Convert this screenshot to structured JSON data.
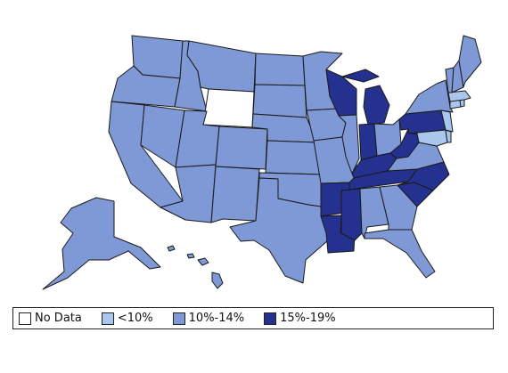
{
  "colors": {
    "no_data": "#ffffff",
    "low": "#a9c6ec",
    "mid": "#7f98d6",
    "high": "#24318f",
    "outline": "#1a1a1a"
  },
  "legend": [
    {
      "label": "No Data",
      "color_key": "no_data"
    },
    {
      "label": "<10%",
      "color_key": "low"
    },
    {
      "label": "10%-14%",
      "color_key": "mid"
    },
    {
      "label": "15%-19%",
      "color_key": "high"
    }
  ],
  "states": {
    "WA": "mid",
    "OR": "mid",
    "CA": "mid",
    "NV": "mid",
    "ID": "mid",
    "MT": "mid",
    "WY": "no_data",
    "UT": "mid",
    "AZ": "mid",
    "CO": "mid",
    "NM": "mid",
    "ND": "mid",
    "SD": "mid",
    "NE": "mid",
    "KS": "mid",
    "OK": "mid",
    "TX": "mid",
    "MN": "mid",
    "IA": "mid",
    "MO": "mid",
    "AR": "high",
    "LA": "high",
    "WI": "high",
    "IL": "mid",
    "MI": "high",
    "IN": "high",
    "OH": "mid",
    "KY": "high",
    "TN": "high",
    "MS": "high",
    "AL": "mid",
    "GA": "mid",
    "FL": "mid",
    "SC": "high",
    "NC": "high",
    "VA": "mid",
    "WV": "high",
    "PA": "high",
    "NY": "mid",
    "VT": "mid",
    "NH": "mid",
    "ME": "mid",
    "MA": "low",
    "CT": "low",
    "RI": "low",
    "NJ": "low",
    "DE": "low",
    "MD": "low",
    "AK": "mid",
    "HI": "mid"
  }
}
